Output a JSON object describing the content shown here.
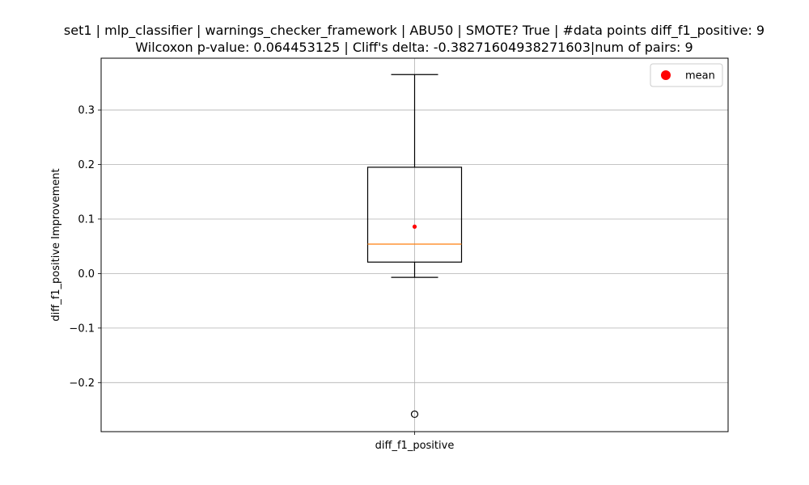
{
  "chart_data": {
    "type": "box",
    "title_line1": "set1 | mlp_classifier | warnings_checker_framework | ABU50 | SMOTE? True | #data points diff_f1_positive: 9",
    "title_line2": "Wilcoxon p-value: 0.064453125 | Cliff's delta: -0.38271604938271603|num of pairs: 9",
    "xlabel": "",
    "ylabel": "diff_f1_positive Improvement",
    "categories": [
      "diff_f1_positive"
    ],
    "ylim": [
      -0.29,
      0.395
    ],
    "yticks": [
      -0.2,
      -0.1,
      0.0,
      0.1,
      0.2,
      0.3
    ],
    "ytick_labels": [
      "−0.2",
      "−0.1",
      "0.0",
      "0.1",
      "0.2",
      "0.3"
    ],
    "grid": true,
    "legend": {
      "entries": [
        "mean"
      ],
      "placement": "top-right"
    },
    "colors": {
      "median": "#ff7f0e",
      "mean": "#ff0000",
      "box": "#000000",
      "grid": "#b0b0b0"
    },
    "boxes": [
      {
        "category": "diff_f1_positive",
        "whisker_low": -0.007,
        "q1": 0.021,
        "median": 0.054,
        "q3": 0.195,
        "whisker_high": 0.365,
        "mean": 0.086,
        "outliers": [
          -0.258
        ]
      }
    ]
  }
}
